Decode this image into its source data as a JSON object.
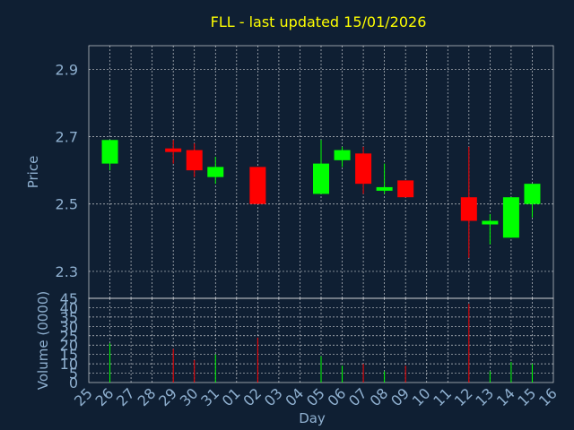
{
  "chart_data": {
    "type": "candlestick",
    "title": "FLL - last updated 15/01/2026",
    "colors": {
      "background": "#0f1f33",
      "title": "#ffff00",
      "text": "#8fb0d0",
      "up": "#00ff00",
      "down": "#ff0000"
    },
    "grid": true,
    "xlabel": "Day",
    "x_ticks": [
      "25",
      "26",
      "27",
      "28",
      "29",
      "30",
      "31",
      "01",
      "02",
      "03",
      "04",
      "05",
      "06",
      "07",
      "08",
      "09",
      "10",
      "11",
      "12",
      "13",
      "14",
      "15",
      "16"
    ],
    "price_panel": {
      "ylabel": "Price",
      "ylim": [
        2.22,
        2.97
      ],
      "y_ticks": [
        "2.3",
        "2.5",
        "2.7",
        "2.9"
      ]
    },
    "volume_panel": {
      "ylabel": "Volume (0000)",
      "ylim": [
        0,
        45
      ],
      "y_ticks": [
        "0",
        "5",
        "10",
        "15",
        "20",
        "25",
        "30",
        "35",
        "40",
        "45"
      ]
    },
    "candles": [
      {
        "day": "26",
        "open": 2.62,
        "high": 2.69,
        "low": 2.6,
        "close": 2.69,
        "volume": 21
      },
      {
        "day": "29",
        "open": 2.665,
        "high": 2.69,
        "low": 2.62,
        "close": 2.655,
        "volume": 18
      },
      {
        "day": "30",
        "open": 2.66,
        "high": 2.68,
        "low": 2.58,
        "close": 2.6,
        "volume": 12
      },
      {
        "day": "31",
        "open": 2.58,
        "high": 2.64,
        "low": 2.56,
        "close": 2.61,
        "volume": 15
      },
      {
        "day": "02",
        "open": 2.61,
        "high": 2.61,
        "low": 2.5,
        "close": 2.5,
        "volume": 24
      },
      {
        "day": "05",
        "open": 2.53,
        "high": 2.69,
        "low": 2.53,
        "close": 2.62,
        "volume": 14
      },
      {
        "day": "06",
        "open": 2.63,
        "high": 2.67,
        "low": 2.61,
        "close": 2.66,
        "volume": 9
      },
      {
        "day": "07",
        "open": 2.65,
        "high": 2.67,
        "low": 2.53,
        "close": 2.56,
        "volume": 10
      },
      {
        "day": "08",
        "open": 2.54,
        "high": 2.62,
        "low": 2.53,
        "close": 2.55,
        "volume": 6
      },
      {
        "day": "09",
        "open": 2.57,
        "high": 2.57,
        "low": 2.52,
        "close": 2.52,
        "volume": 9
      },
      {
        "day": "12",
        "open": 2.52,
        "high": 2.67,
        "low": 2.34,
        "close": 2.45,
        "volume": 42
      },
      {
        "day": "13",
        "open": 2.44,
        "high": 2.47,
        "low": 2.38,
        "close": 2.45,
        "volume": 6
      },
      {
        "day": "14",
        "open": 2.4,
        "high": 2.52,
        "low": 2.4,
        "close": 2.52,
        "volume": 11
      },
      {
        "day": "15",
        "open": 2.5,
        "high": 2.56,
        "low": 2.46,
        "close": 2.56,
        "volume": 10
      }
    ]
  }
}
